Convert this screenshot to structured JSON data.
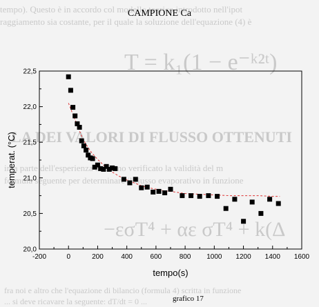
{
  "chart_data": {
    "type": "scatter",
    "title": "CAMPIONE Ca",
    "xlabel": "tempo(s)",
    "ylabel": "temperat. (°C)",
    "xlim": [
      -200,
      1600
    ],
    "ylim": [
      20.0,
      22.5
    ],
    "xticks": [
      "-200",
      "0",
      "200",
      "400",
      "600",
      "800",
      "1000",
      "1200",
      "1400",
      "1600"
    ],
    "yticks": [
      "20,0",
      "20,5",
      "21,0",
      "21,5",
      "22,0",
      "22,5"
    ],
    "series": [
      {
        "marker": "square",
        "color": "#000000",
        "x": [
          0,
          15,
          30,
          45,
          60,
          75,
          90,
          105,
          120,
          135,
          150,
          165,
          180,
          200,
          220,
          240,
          260,
          280,
          300,
          320,
          380,
          420,
          460,
          500,
          540,
          580,
          620,
          660,
          700,
          780,
          840,
          900,
          960,
          1020,
          1080,
          1140,
          1200,
          1260,
          1320,
          1380,
          1440
        ],
        "y": [
          22.42,
          22.23,
          21.99,
          21.87,
          21.76,
          21.71,
          21.52,
          21.45,
          21.39,
          21.32,
          21.28,
          21.27,
          21.15,
          21.18,
          21.13,
          21.12,
          21.16,
          21.12,
          21.14,
          21.13,
          20.98,
          20.93,
          20.98,
          20.86,
          20.87,
          20.8,
          20.81,
          20.79,
          20.84,
          20.75,
          20.75,
          20.74,
          20.75,
          20.74,
          20.57,
          20.7,
          20.39,
          20.66,
          20.5,
          20.7,
          20.64
        ]
      },
      {
        "type": "fit-line",
        "style": "dashed",
        "color": "#dd3333",
        "x": [
          0,
          25,
          50,
          75,
          100,
          130,
          160,
          200,
          250,
          300,
          350,
          400,
          450,
          500,
          550,
          600,
          650,
          700,
          800,
          900,
          1000,
          1100,
          1200,
          1300,
          1400,
          1450
        ],
        "y": [
          22.05,
          21.92,
          21.79,
          21.66,
          21.54,
          21.44,
          21.35,
          21.26,
          21.16,
          21.08,
          21.02,
          20.97,
          20.93,
          20.89,
          20.86,
          20.84,
          20.82,
          20.81,
          20.78,
          20.77,
          20.76,
          20.75,
          20.75,
          20.75,
          20.74,
          20.74
        ]
      }
    ],
    "grid": false
  },
  "caption": "grafico 17",
  "background_text": [
    "tempo). Questo è in accordo col modello teorico introdotto nell'ipot",
    "raggiamento sia costante, per il quale la soluzione dell'equazione (4) è",
    "T = k₁(1 − e⁻ᵏ²ᵗ)",
    "LA DEI VALORI DI FLUSSO OTTENUTI",
    "ima parte dell'esperienza abbiamo verificato la validità del m",
    "formula seguente per determinare il flusso evaporativo in funzione",
    "−εσT⁴ + αε σT⁴ + k(Δ",
    "fra noi e altro che l'equazione di bilancio (formula 4) scritta in funzione",
    "... si deve ricavare la seguente: dT/dt = 0 ..."
  ]
}
